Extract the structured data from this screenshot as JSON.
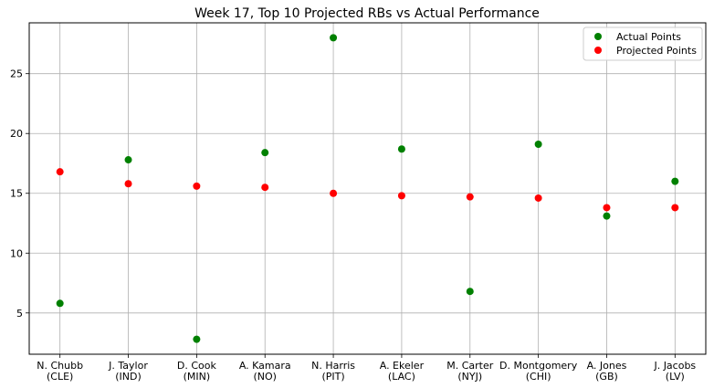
{
  "chart_data": {
    "type": "scatter",
    "title": "Week 17, Top 10 Projected RBs vs Actual Performance",
    "xlabel": "",
    "ylabel": "",
    "categories": [
      [
        "N. Chubb",
        "(CLE)"
      ],
      [
        "J. Taylor",
        "(IND)"
      ],
      [
        "D. Cook",
        "(MIN)"
      ],
      [
        "A. Kamara",
        "(NO)"
      ],
      [
        "N. Harris",
        "(PIT)"
      ],
      [
        "A. Ekeler",
        "(LAC)"
      ],
      [
        "M. Carter",
        "(NYJ)"
      ],
      [
        "D. Montgomery",
        "(CHI)"
      ],
      [
        "A. Jones",
        "(GB)"
      ],
      [
        "J. Jacobs",
        "(LV)"
      ]
    ],
    "series": [
      {
        "name": "Actual Points",
        "color": "#008000",
        "values": [
          5.8,
          17.8,
          2.8,
          18.4,
          28.0,
          18.7,
          6.8,
          19.1,
          13.1,
          16.0
        ]
      },
      {
        "name": "Projected Points",
        "color": "#ff0000",
        "values": [
          16.8,
          15.8,
          15.6,
          15.5,
          15.0,
          14.8,
          14.7,
          14.6,
          13.8,
          13.8
        ]
      }
    ],
    "ylim": [
      1.55,
      29.25
    ],
    "yticks": [
      5,
      10,
      15,
      20,
      25
    ],
    "grid": true,
    "legend": "top-right"
  }
}
